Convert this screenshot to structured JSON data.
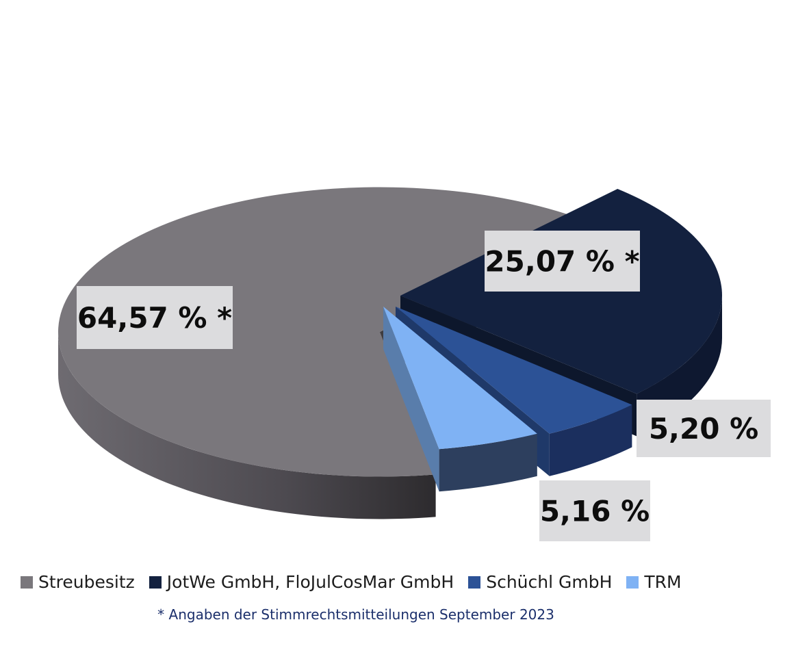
{
  "chart_data": {
    "type": "pie",
    "style": "3d-exploded",
    "slices": [
      {
        "name": "Streubesitz",
        "value": 64.57,
        "label": "64,57 % *",
        "color": "#7a777c"
      },
      {
        "name": "JotWe GmbH, FloJulCosMar GmbH",
        "value": 25.07,
        "label": "25,07 % *",
        "color": "#13213f"
      },
      {
        "name": "Schüchl GmbH",
        "value": 5.2,
        "label": "5,20 %",
        "color": "#2c5296"
      },
      {
        "name": "TRM",
        "value": 5.16,
        "label": "5,16 %",
        "color": "#7fb2f4"
      }
    ],
    "legend": "bottom",
    "footnote": "* Angaben der Stimmrechtsmitteilungen  September 2023"
  }
}
